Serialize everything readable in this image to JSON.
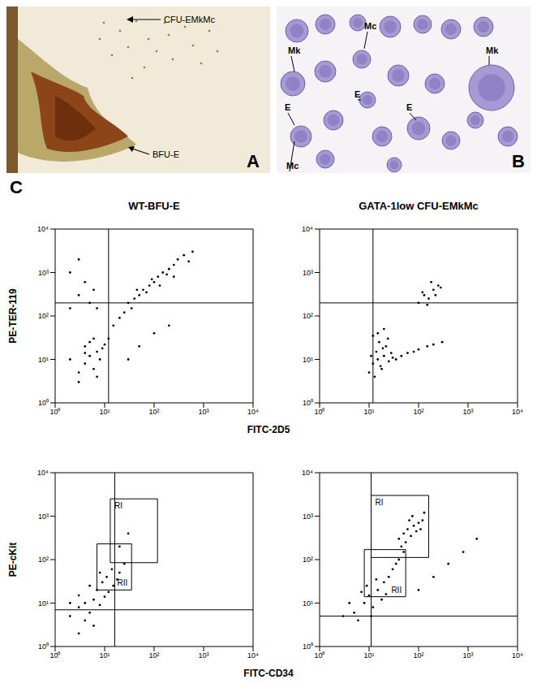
{
  "panel_A": {
    "label": "A",
    "annotations": [
      "CFU-EMkMc",
      "BFU-E"
    ]
  },
  "panel_B": {
    "label": "B",
    "annotations": [
      "Mk",
      "Mc",
      "E",
      "Mk",
      "E",
      "E",
      "Mc"
    ]
  },
  "panel_C": {
    "label": "C"
  },
  "chart_data": [
    {
      "type": "scatter",
      "title": "WT-BFU-E",
      "x_label": "FITC-2D5",
      "y_label": "PE-TER-119",
      "log": true,
      "color": "#000000",
      "xlim": [
        1,
        10000
      ],
      "ylim": [
        1,
        10000
      ],
      "xticks": [
        {
          "value": 1,
          "label": "10⁰"
        },
        {
          "value": 10,
          "label": "10¹"
        },
        {
          "value": 100,
          "label": "10²"
        },
        {
          "value": 1000,
          "label": "10³"
        },
        {
          "value": 10000,
          "label": "10⁴"
        }
      ],
      "yticks": [
        {
          "value": 1,
          "label": "10⁰"
        },
        {
          "value": 10,
          "label": "10¹"
        },
        {
          "value": 100,
          "label": "10²"
        },
        {
          "value": 1000,
          "label": "10³"
        },
        {
          "value": 10000,
          "label": "10⁴"
        }
      ],
      "quadrant": {
        "x": 12,
        "y": 200
      },
      "x": [
        3,
        4,
        5,
        6,
        7,
        4,
        8,
        3,
        5,
        9,
        6,
        10,
        2,
        7,
        12,
        4,
        15,
        20,
        25,
        30,
        40,
        50,
        60,
        80,
        100,
        120,
        150,
        200,
        250,
        300,
        400,
        600,
        35,
        70,
        90,
        180,
        45,
        130,
        250,
        500,
        2,
        3,
        5,
        4,
        6,
        2,
        7,
        3,
        30,
        50,
        100,
        200
      ],
      "y": [
        5,
        8,
        12,
        6,
        15,
        20,
        10,
        3,
        25,
        18,
        30,
        22,
        10,
        4,
        30,
        14,
        60,
        90,
        120,
        200,
        250,
        300,
        400,
        500,
        600,
        800,
        1000,
        1200,
        1500,
        2000,
        2500,
        3000,
        150,
        350,
        700,
        900,
        400,
        500,
        800,
        1800,
        150,
        300,
        200,
        600,
        400,
        1000,
        150,
        2000,
        10,
        20,
        40,
        60
      ]
    },
    {
      "type": "scatter",
      "title": "GATA-1low CFU-EMkMc",
      "log": true,
      "color": "#000000",
      "xlim": [
        1,
        10000
      ],
      "ylim": [
        1,
        10000
      ],
      "xticks": [
        {
          "value": 1,
          "label": "10⁰"
        },
        {
          "value": 10,
          "label": "10¹"
        },
        {
          "value": 100,
          "label": "10²"
        },
        {
          "value": 1000,
          "label": "10³"
        },
        {
          "value": 10000,
          "label": "10⁴"
        }
      ],
      "yticks": [
        {
          "value": 1,
          "label": "10⁰"
        },
        {
          "value": 10,
          "label": "10¹"
        },
        {
          "value": 100,
          "label": "10²"
        },
        {
          "value": 1000,
          "label": "10³"
        },
        {
          "value": 10000,
          "label": "10⁴"
        }
      ],
      "quadrant": {
        "x": 12,
        "y": 200
      },
      "x": [
        12,
        15,
        18,
        20,
        14,
        25,
        10,
        22,
        16,
        30,
        13,
        19,
        28,
        11,
        17,
        24,
        35,
        45,
        60,
        80,
        100,
        150,
        200,
        300,
        15,
        20,
        12,
        100,
        130,
        160,
        200,
        250,
        120,
        180,
        150,
        220,
        280
      ],
      "y": [
        8,
        10,
        6,
        12,
        15,
        9,
        5,
        20,
        25,
        11,
        4,
        18,
        14,
        12,
        7,
        30,
        10,
        12,
        14,
        15,
        17,
        20,
        22,
        25,
        40,
        50,
        35,
        200,
        300,
        250,
        400,
        500,
        350,
        600,
        180,
        300,
        450
      ]
    },
    {
      "type": "scatter",
      "x_label": "FITC-CD34",
      "y_label": "PE-cKit",
      "log": true,
      "color": "#000000",
      "xlim": [
        1,
        10000
      ],
      "ylim": [
        1,
        10000
      ],
      "xticks": [
        {
          "value": 1,
          "label": "10⁰"
        },
        {
          "value": 10,
          "label": "10¹"
        },
        {
          "value": 100,
          "label": "10²"
        },
        {
          "value": 1000,
          "label": "10³"
        },
        {
          "value": 10000,
          "label": "10⁴"
        }
      ],
      "yticks": [
        {
          "value": 1,
          "label": "10⁰"
        },
        {
          "value": 10,
          "label": "10¹"
        },
        {
          "value": 100,
          "label": "10²"
        },
        {
          "value": 1000,
          "label": "10³"
        },
        {
          "value": 10000,
          "label": "10⁴"
        }
      ],
      "quadrant": {
        "x": 16,
        "y": 7
      },
      "gates": [
        {
          "name": "RI",
          "x": [
            13,
            117
          ],
          "y": [
            85,
            2500
          ]
        },
        {
          "name": "RII",
          "x": [
            7,
            35
          ],
          "y": [
            20,
            230
          ]
        }
      ],
      "x": [
        2,
        3,
        4,
        5,
        6,
        3,
        8,
        10,
        4,
        7,
        12,
        2,
        5,
        9,
        15,
        11,
        14,
        18,
        6,
        3,
        20,
        25,
        8,
        20,
        30
      ],
      "y": [
        5,
        8,
        10,
        6,
        12,
        15,
        9,
        14,
        4,
        20,
        18,
        10,
        25,
        30,
        25,
        40,
        60,
        35,
        3,
        2,
        50,
        80,
        50,
        200,
        400
      ]
    },
    {
      "type": "scatter",
      "log": true,
      "color": "#000000",
      "xlim": [
        1,
        10000
      ],
      "ylim": [
        1,
        10000
      ],
      "xticks": [
        {
          "value": 1,
          "label": "10⁰"
        },
        {
          "value": 10,
          "label": "10¹"
        },
        {
          "value": 100,
          "label": "10²"
        },
        {
          "value": 1000,
          "label": "10³"
        },
        {
          "value": 10000,
          "label": "10⁴"
        }
      ],
      "yticks": [
        {
          "value": 1,
          "label": "10⁰"
        },
        {
          "value": 10,
          "label": "10¹"
        },
        {
          "value": 100,
          "label": "10²"
        },
        {
          "value": 1000,
          "label": "10³"
        },
        {
          "value": 10000,
          "label": "10⁴"
        }
      ],
      "quadrant": {
        "x": 11,
        "y": 5
      },
      "gates": [
        {
          "name": "RI",
          "x": [
            11,
            160
          ],
          "y": [
            112,
            3000
          ]
        },
        {
          "name": "RII",
          "x": [
            8,
            55
          ],
          "y": [
            14,
            170
          ]
        }
      ],
      "x": [
        5,
        8,
        10,
        6,
        12,
        15,
        4,
        20,
        9,
        25,
        30,
        18,
        7,
        14,
        35,
        40,
        50,
        3,
        11,
        22,
        40,
        50,
        60,
        70,
        80,
        100,
        55,
        90,
        120,
        65,
        45,
        75,
        110,
        130,
        100,
        200,
        400,
        800,
        1500
      ],
      "y": [
        6,
        10,
        15,
        4,
        8,
        20,
        10,
        30,
        25,
        40,
        60,
        12,
        18,
        35,
        80,
        100,
        150,
        5,
        5,
        16,
        300,
        400,
        500,
        350,
        600,
        700,
        250,
        450,
        800,
        800,
        200,
        1000,
        500,
        1200,
        20,
        40,
        80,
        150,
        300
      ]
    }
  ]
}
